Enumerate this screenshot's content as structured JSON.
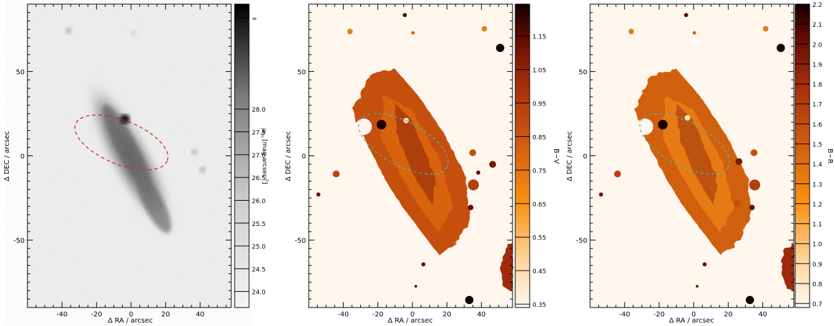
{
  "panels": [
    {
      "id": "mu",
      "xlabel": "Δ RA / arcsec",
      "ylabel": "Δ DEC / arcsec",
      "xticks": [
        "-40",
        "-20",
        "0",
        "20",
        "40"
      ],
      "xtick_values": [
        -40,
        -20,
        0,
        20,
        40
      ],
      "yticks": [
        "50",
        "0",
        "-50"
      ],
      "ytick_values": [
        50,
        0,
        -50
      ],
      "colorbar": {
        "label": "μ_nu [mag arcsec^-2]",
        "label_main": "μ",
        "label_sub": "nu",
        "label_units": "[mag arcsec",
        "label_exp": "-2",
        "label_close": "]",
        "ticks": [
          "24.0",
          "24.5",
          "25.0",
          "25.5",
          "26.0",
          "26.5",
          "27.0",
          "27.5",
          "28.0",
          "∞"
        ],
        "tick_values": [
          24.0,
          24.5,
          25.0,
          25.5,
          26.0,
          26.5,
          27.0,
          27.5,
          28.0,
          30.0
        ],
        "colormap": "gray-inverted"
      }
    },
    {
      "id": "bv",
      "xlabel": "Δ RA / arcsec",
      "ylabel": "Δ DEC / arcsec",
      "xticks": [
        "-40",
        "-20",
        "0",
        "20",
        "40"
      ],
      "xtick_values": [
        -40,
        -20,
        0,
        20,
        40
      ],
      "yticks": [
        "50",
        "0",
        "-50"
      ],
      "ytick_values": [
        50,
        0,
        -50
      ],
      "colorbar": {
        "label": "B−V",
        "ticks": [
          "1.15",
          "1.05",
          "0.95",
          "0.85",
          "0.75",
          "0.65",
          "0.55",
          "0.45",
          "0.35"
        ],
        "tick_values": [
          1.15,
          1.05,
          0.95,
          0.85,
          0.75,
          0.65,
          0.55,
          0.45,
          0.35
        ],
        "colormap": "orange-heat"
      }
    },
    {
      "id": "br",
      "xlabel": "Δ RA / arcsec",
      "ylabel": "Δ DEC / arcsec",
      "xticks": [
        "-40",
        "-20",
        "0",
        "20",
        "40"
      ],
      "xtick_values": [
        -40,
        -20,
        0,
        20,
        40
      ],
      "yticks": [
        "50",
        "0",
        "-50"
      ],
      "ytick_values": [
        50,
        0,
        -50
      ],
      "colorbar": {
        "label": "B−R",
        "ticks": [
          "2.2",
          "2.1",
          "2.0",
          "1.9",
          "1.8",
          "1.7",
          "1.6",
          "1.5",
          "1.4",
          "1.3",
          "1.2",
          "1.1",
          "1.0",
          "0.9",
          "0.8",
          "0.7"
        ],
        "tick_values": [
          2.2,
          2.1,
          2.0,
          1.9,
          1.8,
          1.7,
          1.6,
          1.5,
          1.4,
          1.3,
          1.2,
          1.1,
          1.0,
          0.9,
          0.8,
          0.7
        ],
        "colormap": "orange-heat"
      }
    }
  ],
  "colors": {
    "ellipse_mu": "#e02020",
    "ellipse_color": "#40c0b0",
    "heat_light": "#fff6ee",
    "heat_mid": "#e06a10",
    "heat_dark": "#6a1000"
  }
}
